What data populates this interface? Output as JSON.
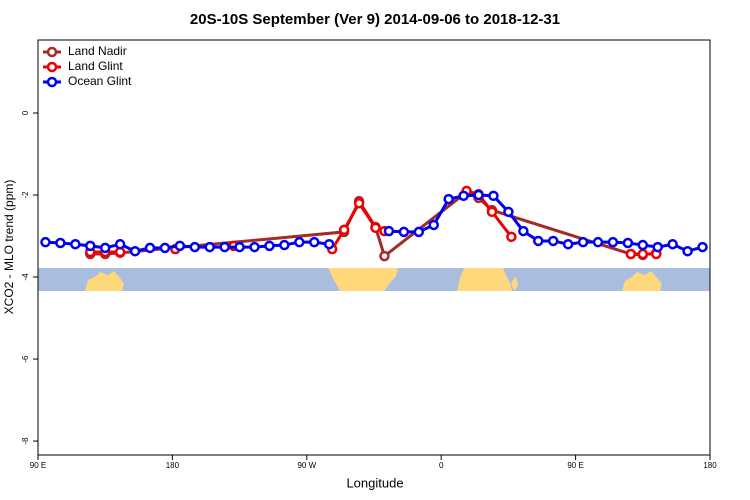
{
  "chart_data": {
    "type": "line",
    "title": "20S-10S September (Ver 9)   2014-09-06 to 2018-12-31",
    "xlabel": "Longitude",
    "ylabel": "XCO2 - MLO trend (ppm)",
    "xlim": [
      90,
      540
    ],
    "ylim": [
      -8.34,
      1.78
    ],
    "xticks": [
      {
        "value": 90,
        "label": "90 E"
      },
      180,
      {
        "value": 270,
        "label": "90 W"
      },
      {
        "value": 360,
        "label": "0"
      },
      {
        "value": 450,
        "label": "90 E"
      },
      {
        "value": 540,
        "label": "180"
      }
    ],
    "yticks": [
      -8,
      -6,
      -4,
      -2,
      0
    ],
    "legend": "top-left",
    "series": [
      {
        "name": "Land Nadir",
        "color": "#a52a2a",
        "x": [
          125,
          135,
          145,
          295,
          305,
          316,
          322,
          377,
          385,
          394,
          487,
          495,
          504
        ],
        "values": [
          -3.44,
          -3.44,
          -3.41,
          -2.9,
          -2.15,
          -2.78,
          -3.49,
          -1.93,
          -2.07,
          -2.37,
          -3.44,
          -3.46,
          -3.41
        ]
      },
      {
        "name": "Land Glint",
        "color": "#ee0000",
        "x": [
          125,
          135,
          145,
          null,
          182,
          null,
          221,
          null,
          287,
          295,
          305,
          316,
          322,
          null,
          377,
          385,
          394,
          407,
          null,
          487,
          495,
          504
        ],
        "values": [
          -3.39,
          -3.39,
          -3.39,
          null,
          -3.32,
          null,
          -3.24,
          null,
          -3.32,
          -2.85,
          -2.2,
          -2.8,
          -2.88,
          null,
          -1.9,
          -1.98,
          -2.41,
          -3.02,
          null,
          -3.44,
          -3.44,
          -3.44
        ]
      },
      {
        "name": "Ocean Glint",
        "color": "#0000ee",
        "x": [
          95,
          105,
          115,
          125,
          135,
          145,
          155,
          165,
          175,
          185,
          195,
          205,
          215,
          225,
          235,
          245,
          255,
          265,
          275,
          285,
          295,
          305,
          315,
          325,
          335,
          345,
          355,
          365,
          375,
          385,
          395,
          405,
          415,
          425,
          435,
          445,
          455,
          465,
          475,
          485,
          495,
          505,
          515,
          525,
          535
        ],
        "values": [
          -3.15,
          -3.17,
          -3.2,
          -3.24,
          -3.29,
          -3.2,
          -3.37,
          -3.29,
          -3.29,
          -3.24,
          -3.27,
          -3.27,
          -3.27,
          -3.27,
          -3.27,
          -3.24,
          -3.22,
          -3.15,
          -3.15,
          -3.2,
          null,
          null,
          null,
          -2.88,
          -2.9,
          -2.9,
          -2.73,
          -2.1,
          -2.02,
          -2.0,
          -2.02,
          -2.41,
          -2.88,
          -3.12,
          -3.12,
          -3.2,
          -3.15,
          -3.15,
          -3.15,
          -3.17,
          -3.22,
          -3.27,
          -3.2,
          -3.37,
          -3.27
        ]
      }
    ]
  }
}
